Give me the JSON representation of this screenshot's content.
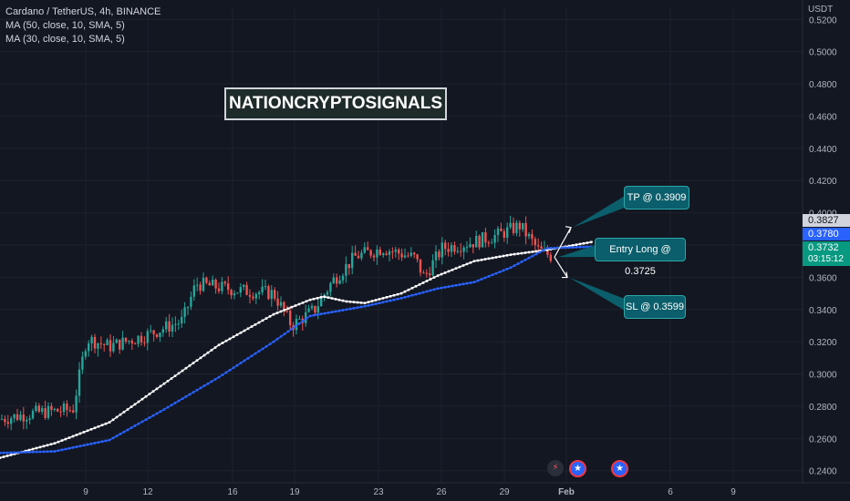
{
  "legend": {
    "title": "Cardano / TetherUS, 4h, BINANCE",
    "ma1": "MA (50, close, 10, SMA, 5)",
    "ma2": "MA (30, close, 10, SMA, 5)"
  },
  "watermark": "NATIONCRYPTOSIGNALS",
  "callouts": {
    "tp": "TP @ 0.3909",
    "entry": "Entry Long @ 0.3725",
    "sl": "SL @ 0.3599"
  },
  "price_scale": {
    "currency": "USDT",
    "tag_high": "0.3827",
    "tag_ma": "0.3780",
    "tag_last": "0.3732",
    "countdown": "03:15:12"
  },
  "colors": {
    "background": "#131722",
    "up": "#26a69a",
    "down": "#ef5350",
    "ma_white": "#ffffff",
    "ma_blue": "#2962ff",
    "callout": "#0b5e6b"
  },
  "events": [
    "lightning-icon",
    "us-flag-icon",
    "us-flag-icon"
  ],
  "chart_data": {
    "type": "candlestick",
    "y_ticks": [
      "0.5200",
      "0.5000",
      "0.4800",
      "0.4600",
      "0.4400",
      "0.4200",
      "0.4000",
      "0.3800",
      "0.3600",
      "0.3400",
      "0.3200",
      "0.3000",
      "0.2800",
      "0.2600",
      "0.2400"
    ],
    "y_tick_values": [
      0.52,
      0.5,
      0.48,
      0.46,
      0.44,
      0.42,
      0.4,
      0.38,
      0.36,
      0.34,
      0.32,
      0.3,
      0.28,
      0.26,
      0.24
    ],
    "ylim": [
      0.2325,
      0.5275
    ],
    "x_ticks": [
      "9",
      "12",
      "16",
      "19",
      "23",
      "26",
      "29",
      "Feb",
      "6",
      "9"
    ],
    "trend_anchors": [
      {
        "x": 0,
        "y": 0.272
      },
      {
        "x": 40,
        "y": 0.276
      },
      {
        "x": 80,
        "y": 0.278
      },
      {
        "x": 95,
        "y": 0.322
      },
      {
        "x": 120,
        "y": 0.317
      },
      {
        "x": 160,
        "y": 0.324
      },
      {
        "x": 200,
        "y": 0.333
      },
      {
        "x": 215,
        "y": 0.356
      },
      {
        "x": 260,
        "y": 0.352
      },
      {
        "x": 300,
        "y": 0.35
      },
      {
        "x": 320,
        "y": 0.33
      },
      {
        "x": 345,
        "y": 0.34
      },
      {
        "x": 365,
        "y": 0.358
      },
      {
        "x": 390,
        "y": 0.373
      },
      {
        "x": 420,
        "y": 0.378
      },
      {
        "x": 455,
        "y": 0.372
      },
      {
        "x": 465,
        "y": 0.36
      },
      {
        "x": 485,
        "y": 0.378
      },
      {
        "x": 520,
        "y": 0.382
      },
      {
        "x": 545,
        "y": 0.386
      },
      {
        "x": 570,
        "y": 0.392
      },
      {
        "x": 590,
        "y": 0.377
      },
      {
        "x": 605,
        "y": 0.373
      }
    ],
    "ma_white": [
      {
        "x": 0,
        "y": 0.248
      },
      {
        "x": 60,
        "y": 0.257
      },
      {
        "x": 120,
        "y": 0.27
      },
      {
        "x": 180,
        "y": 0.294
      },
      {
        "x": 240,
        "y": 0.318
      },
      {
        "x": 300,
        "y": 0.337
      },
      {
        "x": 340,
        "y": 0.346
      },
      {
        "x": 355,
        "y": 0.348
      },
      {
        "x": 380,
        "y": 0.345
      },
      {
        "x": 400,
        "y": 0.344
      },
      {
        "x": 440,
        "y": 0.35
      },
      {
        "x": 480,
        "y": 0.361
      },
      {
        "x": 520,
        "y": 0.37
      },
      {
        "x": 560,
        "y": 0.374
      },
      {
        "x": 600,
        "y": 0.377
      },
      {
        "x": 650,
        "y": 0.382
      }
    ],
    "ma_blue": [
      {
        "x": 0,
        "y": 0.251
      },
      {
        "x": 60,
        "y": 0.252
      },
      {
        "x": 120,
        "y": 0.259
      },
      {
        "x": 180,
        "y": 0.278
      },
      {
        "x": 240,
        "y": 0.298
      },
      {
        "x": 300,
        "y": 0.32
      },
      {
        "x": 340,
        "y": 0.336
      },
      {
        "x": 400,
        "y": 0.342
      },
      {
        "x": 440,
        "y": 0.347
      },
      {
        "x": 480,
        "y": 0.353
      },
      {
        "x": 520,
        "y": 0.357
      },
      {
        "x": 560,
        "y": 0.366
      },
      {
        "x": 600,
        "y": 0.378
      },
      {
        "x": 650,
        "y": 0.379
      }
    ],
    "tp_value": 0.3909,
    "entry_value": 0.3725,
    "sl_value": 0.3599,
    "grid": true
  }
}
